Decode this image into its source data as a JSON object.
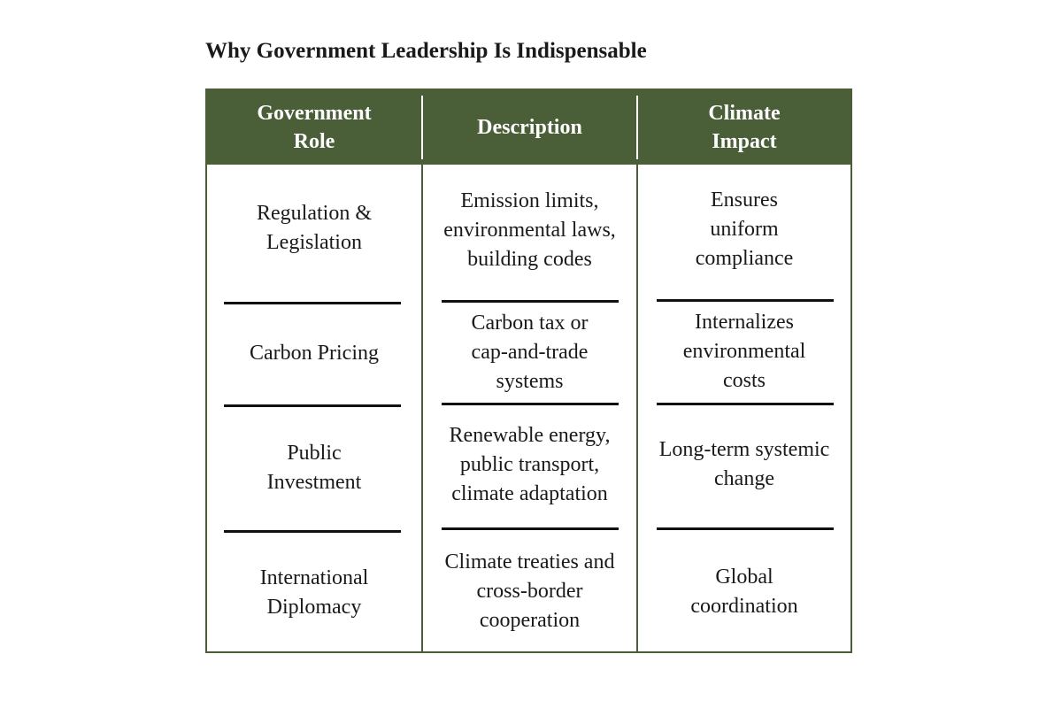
{
  "document": {
    "title": "Why Government Leadership Is Indispensable"
  },
  "table": {
    "headers": {
      "role": "Government Role",
      "description": "Description",
      "impact": "Climate Impact"
    },
    "rows": [
      {
        "role": "Regulation & Legislation",
        "description": "Emission limits, environmental laws, building codes",
        "impact": "Ensures uniform compliance"
      },
      {
        "role": "Carbon Pricing",
        "description": "Carbon tax or cap-and-trade systems",
        "impact": "Internalizes environmental costs"
      },
      {
        "role": "Public Investment",
        "description": "Renewable energy, public transport, climate adaptation",
        "impact": "Long-term systemic change"
      },
      {
        "role": "International Diplomacy",
        "description": "Climate treaties and cross-border cooperation",
        "impact": "Global coordination"
      }
    ]
  },
  "colors": {
    "header_background": "#4a5e38",
    "header_text": "#ffffff",
    "border": "#4a5e38",
    "body_text": "#1a1a1a"
  }
}
